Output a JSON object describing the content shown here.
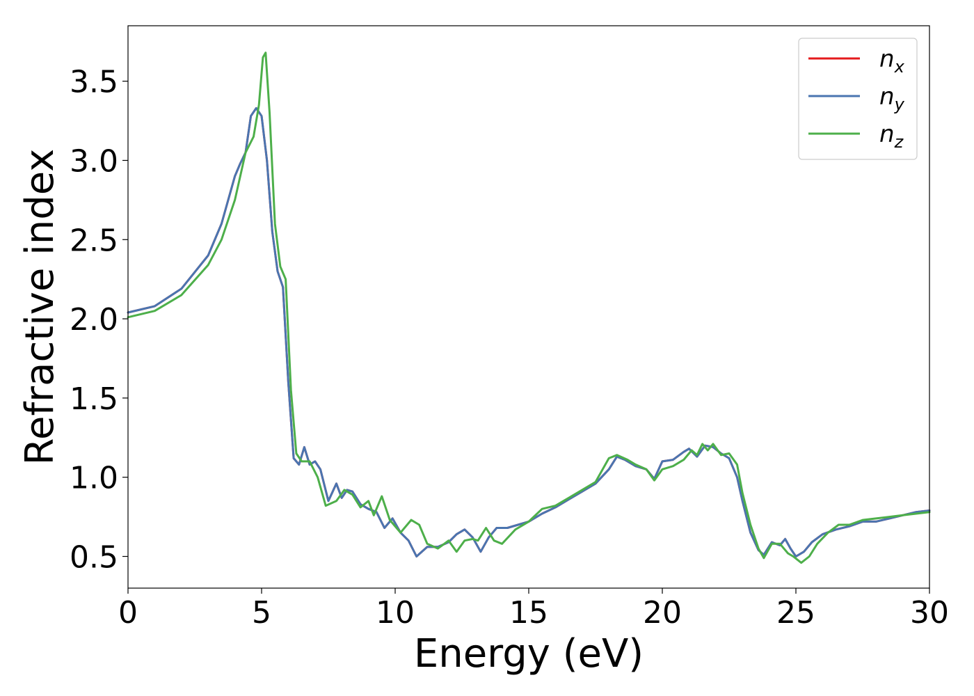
{
  "chart_data": {
    "type": "line",
    "title": "",
    "xlabel": "Energy (eV)",
    "ylabel": "Refractive index",
    "xlim": [
      0,
      30
    ],
    "ylim": [
      0.3,
      3.85
    ],
    "xticks": [
      0,
      5,
      10,
      15,
      20,
      25,
      30
    ],
    "yticks": [
      0.5,
      1.0,
      1.5,
      2.0,
      2.5,
      3.0,
      3.5
    ],
    "grid": false,
    "legend_position": "top-right",
    "series": [
      {
        "name": "n_x",
        "label_base": "n",
        "label_sub": "x",
        "color": "#e41a1c",
        "x": [
          0,
          1,
          2,
          3,
          3.5,
          4,
          4.2,
          4.4,
          4.6,
          4.8,
          5.0,
          5.2,
          5.4,
          5.6,
          5.8,
          6.0,
          6.2,
          6.4,
          6.6,
          6.8,
          7.0,
          7.2,
          7.5,
          7.8,
          8.0,
          8.2,
          8.4,
          8.7,
          9.0,
          9.3,
          9.6,
          9.9,
          10.2,
          10.5,
          10.8,
          11.2,
          11.6,
          12.0,
          12.3,
          12.6,
          12.9,
          13.2,
          13.5,
          13.8,
          14.2,
          14.6,
          15.0,
          15.5,
          16.0,
          16.5,
          17.0,
          17.5,
          18.0,
          18.3,
          18.6,
          19.0,
          19.4,
          19.7,
          20.0,
          20.4,
          20.8,
          21.0,
          21.3,
          21.6,
          21.9,
          22.2,
          22.5,
          22.8,
          23.0,
          23.3,
          23.6,
          23.8,
          24.1,
          24.4,
          24.6,
          24.8,
          25.0,
          25.3,
          25.6,
          26.0,
          26.5,
          27.0,
          27.5,
          28.0,
          28.5,
          29.0,
          29.5,
          30.0
        ],
        "y": [
          2.04,
          2.08,
          2.19,
          2.4,
          2.6,
          2.9,
          2.98,
          3.05,
          3.28,
          3.33,
          3.28,
          3.0,
          2.55,
          2.3,
          2.2,
          1.6,
          1.12,
          1.08,
          1.19,
          1.08,
          1.1,
          1.05,
          0.85,
          0.96,
          0.87,
          0.92,
          0.91,
          0.83,
          0.8,
          0.78,
          0.68,
          0.74,
          0.65,
          0.6,
          0.5,
          0.56,
          0.56,
          0.59,
          0.64,
          0.67,
          0.62,
          0.53,
          0.62,
          0.68,
          0.68,
          0.7,
          0.72,
          0.77,
          0.81,
          0.86,
          0.91,
          0.96,
          1.05,
          1.13,
          1.11,
          1.07,
          1.05,
          0.99,
          1.1,
          1.11,
          1.16,
          1.18,
          1.13,
          1.2,
          1.19,
          1.15,
          1.12,
          1.0,
          0.85,
          0.65,
          0.54,
          0.51,
          0.59,
          0.57,
          0.61,
          0.55,
          0.5,
          0.53,
          0.59,
          0.64,
          0.67,
          0.69,
          0.72,
          0.72,
          0.74,
          0.76,
          0.78,
          0.79
        ]
      },
      {
        "name": "n_y",
        "label_base": "n",
        "label_sub": "y",
        "color": "#4a75b0",
        "x": [
          0,
          1,
          2,
          3,
          3.5,
          4,
          4.2,
          4.4,
          4.6,
          4.8,
          5.0,
          5.2,
          5.4,
          5.6,
          5.8,
          6.0,
          6.2,
          6.4,
          6.6,
          6.8,
          7.0,
          7.2,
          7.5,
          7.8,
          8.0,
          8.2,
          8.4,
          8.7,
          9.0,
          9.3,
          9.6,
          9.9,
          10.2,
          10.5,
          10.8,
          11.2,
          11.6,
          12.0,
          12.3,
          12.6,
          12.9,
          13.2,
          13.5,
          13.8,
          14.2,
          14.6,
          15.0,
          15.5,
          16.0,
          16.5,
          17.0,
          17.5,
          18.0,
          18.3,
          18.6,
          19.0,
          19.4,
          19.7,
          20.0,
          20.4,
          20.8,
          21.0,
          21.3,
          21.6,
          21.9,
          22.2,
          22.5,
          22.8,
          23.0,
          23.3,
          23.6,
          23.8,
          24.1,
          24.4,
          24.6,
          24.8,
          25.0,
          25.3,
          25.6,
          26.0,
          26.5,
          27.0,
          27.5,
          28.0,
          28.5,
          29.0,
          29.5,
          30.0
        ],
        "y": [
          2.04,
          2.08,
          2.19,
          2.4,
          2.6,
          2.9,
          2.98,
          3.05,
          3.28,
          3.33,
          3.28,
          3.0,
          2.55,
          2.3,
          2.2,
          1.6,
          1.12,
          1.08,
          1.19,
          1.08,
          1.1,
          1.05,
          0.85,
          0.96,
          0.87,
          0.92,
          0.91,
          0.83,
          0.8,
          0.78,
          0.68,
          0.74,
          0.65,
          0.6,
          0.5,
          0.56,
          0.56,
          0.59,
          0.64,
          0.67,
          0.62,
          0.53,
          0.62,
          0.68,
          0.68,
          0.7,
          0.72,
          0.77,
          0.81,
          0.86,
          0.91,
          0.96,
          1.05,
          1.13,
          1.11,
          1.07,
          1.05,
          0.99,
          1.1,
          1.11,
          1.16,
          1.18,
          1.13,
          1.2,
          1.19,
          1.15,
          1.12,
          1.0,
          0.85,
          0.65,
          0.54,
          0.51,
          0.59,
          0.57,
          0.61,
          0.55,
          0.5,
          0.53,
          0.59,
          0.64,
          0.67,
          0.69,
          0.72,
          0.72,
          0.74,
          0.76,
          0.78,
          0.79
        ]
      },
      {
        "name": "n_z",
        "label_base": "n",
        "label_sub": "z",
        "color": "#4daf4a",
        "x": [
          0,
          1,
          2,
          3,
          3.5,
          4,
          4.4,
          4.7,
          4.9,
          5.05,
          5.15,
          5.3,
          5.5,
          5.7,
          5.9,
          6.1,
          6.3,
          6.5,
          6.8,
          7.1,
          7.4,
          7.8,
          8.1,
          8.4,
          8.7,
          9.0,
          9.2,
          9.5,
          9.8,
          10.2,
          10.6,
          10.9,
          11.2,
          11.6,
          12.0,
          12.3,
          12.6,
          12.9,
          13.1,
          13.4,
          13.7,
          14.0,
          14.5,
          15.0,
          15.5,
          16.0,
          16.5,
          17.0,
          17.5,
          18.0,
          18.3,
          18.7,
          19.0,
          19.4,
          19.7,
          20.0,
          20.4,
          20.8,
          21.1,
          21.3,
          21.5,
          21.7,
          21.9,
          22.2,
          22.5,
          22.8,
          23.0,
          23.3,
          23.6,
          23.8,
          24.1,
          24.4,
          24.7,
          24.9,
          25.2,
          25.5,
          25.8,
          26.2,
          26.6,
          27.0,
          27.5,
          28.0,
          28.5,
          29.0,
          29.5,
          30.0
        ],
        "y": [
          2.01,
          2.05,
          2.15,
          2.34,
          2.5,
          2.75,
          3.05,
          3.15,
          3.35,
          3.65,
          3.68,
          3.3,
          2.6,
          2.33,
          2.25,
          1.55,
          1.15,
          1.1,
          1.1,
          1.0,
          0.82,
          0.85,
          0.92,
          0.89,
          0.81,
          0.85,
          0.76,
          0.88,
          0.73,
          0.65,
          0.73,
          0.7,
          0.58,
          0.55,
          0.6,
          0.53,
          0.6,
          0.61,
          0.6,
          0.68,
          0.6,
          0.58,
          0.67,
          0.72,
          0.8,
          0.82,
          0.87,
          0.92,
          0.97,
          1.12,
          1.14,
          1.11,
          1.08,
          1.05,
          0.98,
          1.05,
          1.07,
          1.11,
          1.17,
          1.14,
          1.21,
          1.17,
          1.21,
          1.14,
          1.15,
          1.08,
          0.9,
          0.7,
          0.55,
          0.49,
          0.58,
          0.58,
          0.52,
          0.5,
          0.46,
          0.5,
          0.58,
          0.65,
          0.7,
          0.7,
          0.73,
          0.74,
          0.75,
          0.76,
          0.77,
          0.78
        ]
      }
    ]
  }
}
